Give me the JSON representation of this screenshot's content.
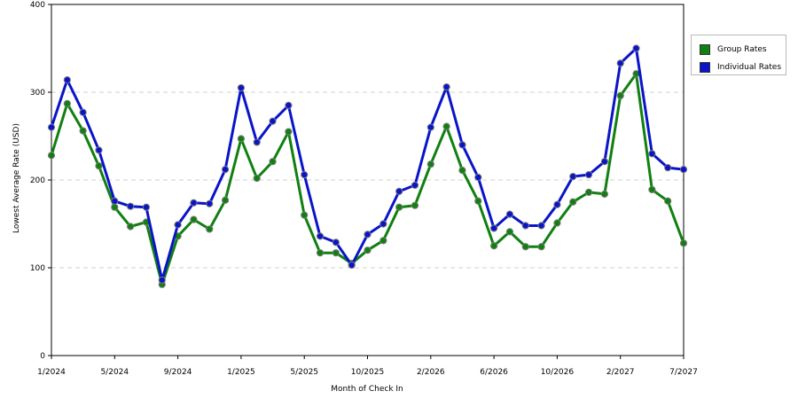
{
  "chart_data": {
    "type": "line",
    "xlabel": "Month of Check In",
    "ylabel": "Lowest Average Rate (USD)",
    "ylim": [
      0,
      400
    ],
    "yticks": [
      0,
      100,
      200,
      300,
      400
    ],
    "grid": "horizontal dashed",
    "legend_position": "top-right",
    "x_tick_labels": [
      "1/2024",
      "5/2024",
      "9/2024",
      "1/2025",
      "5/2025",
      "10/2025",
      "2/2026",
      "6/2026",
      "10/2026",
      "2/2027",
      "7/2027"
    ],
    "x_tick_index": [
      0,
      4,
      8,
      12,
      16,
      20,
      24,
      28,
      32,
      36,
      40
    ],
    "x": [
      "1/2024",
      "2/2024",
      "3/2024",
      "4/2024",
      "5/2024",
      "6/2024",
      "7/2024",
      "8/2024",
      "9/2024",
      "10/2024",
      "11/2024",
      "12/2024",
      "1/2025",
      "2/2025",
      "3/2025",
      "4/2025",
      "5/2025",
      "6/2025",
      "7/2025",
      "8/2025",
      "10/2025",
      "11/2025",
      "12/2025",
      "1/2026",
      "2/2026",
      "3/2026",
      "4/2026",
      "5/2026",
      "6/2026",
      "7/2026",
      "8/2026",
      "9/2026",
      "10/2026",
      "11/2026",
      "12/2026",
      "1/2027",
      "2/2027",
      "3/2027",
      "4/2027",
      "5/2027",
      "7/2027"
    ],
    "series": [
      {
        "name": "Group Rates",
        "color": "#108010",
        "values": [
          228,
          287,
          256,
          216,
          169,
          147,
          152,
          81,
          136,
          155,
          144,
          177,
          247,
          202,
          221,
          255,
          160,
          117,
          117,
          105,
          120,
          131,
          169,
          171,
          218,
          261,
          211,
          176,
          125,
          141,
          124,
          124,
          151,
          175,
          186,
          184,
          296,
          321,
          189,
          176,
          128
        ]
      },
      {
        "name": "Individual Rates",
        "color": "#0a14c8",
        "values": [
          260,
          314,
          277,
          234,
          176,
          170,
          169,
          86,
          149,
          174,
          173,
          212,
          305,
          243,
          267,
          285,
          206,
          136,
          129,
          103,
          138,
          150,
          187,
          194,
          260,
          306,
          240,
          203,
          145,
          161,
          148,
          148,
          172,
          204,
          206,
          221,
          333,
          350,
          230,
          214,
          212
        ]
      }
    ]
  }
}
